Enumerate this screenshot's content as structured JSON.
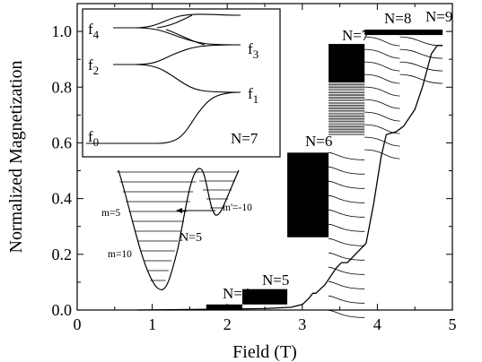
{
  "chart_data": {
    "type": "line",
    "xlabel": "Field (T)",
    "ylabel": "Normalized Magnetization",
    "xlim": [
      0,
      5
    ],
    "ylim": [
      0,
      1.1
    ],
    "x_ticks": [
      "0",
      "1",
      "2",
      "3",
      "4",
      "5"
    ],
    "y_ticks": [
      "0.0",
      "0.2",
      "0.4",
      "0.6",
      "0.8",
      "1.0"
    ],
    "step_levels": [
      {
        "label": "N=4",
        "x_start": 1.72,
        "x_end": 2.2,
        "y": 0.02
      },
      {
        "label": "N=5",
        "x_start": 2.2,
        "x_end": 2.8,
        "y": 0.075
      },
      {
        "label": "N=6",
        "x_start": 2.8,
        "x_end": 3.35,
        "y": 0.565
      },
      {
        "label": "N=7",
        "x_start": 3.35,
        "x_end": 3.83,
        "y": 0.955
      },
      {
        "label": "N=8",
        "x_start": 3.83,
        "x_end": 4.3,
        "y": 1.0
      },
      {
        "label": "N=9",
        "x_start": 4.3,
        "x_end": 4.87,
        "y": 1.0
      }
    ],
    "main_curve": {
      "x": [
        0.8,
        1.5,
        2.5,
        2.85,
        3.0,
        3.08,
        3.14,
        3.18,
        3.3,
        3.45,
        3.52,
        3.6,
        3.85,
        3.95,
        4.05,
        4.12,
        4.25,
        4.35,
        4.5,
        4.6,
        4.72,
        4.8,
        4.87
      ],
      "y": [
        0.0,
        0.002,
        0.005,
        0.01,
        0.02,
        0.04,
        0.06,
        0.06,
        0.09,
        0.15,
        0.17,
        0.17,
        0.24,
        0.38,
        0.55,
        0.63,
        0.64,
        0.66,
        0.72,
        0.8,
        0.92,
        0.95,
        0.95
      ]
    }
  },
  "main_labels": {
    "n4": "N=4",
    "n5": "N=5",
    "n6": "N=6",
    "n7": "N=7",
    "n8": "N=8",
    "n9": "N=9"
  },
  "inset": {
    "n_label": "N=7",
    "f0": "f0",
    "f1": "f1",
    "f2": "f2",
    "f3": "f3",
    "f4": "f4"
  },
  "well": {
    "m_left_top": "m=5",
    "m_left_bottom": "m=10",
    "m_right": "m'=-10",
    "n_label": "N=5"
  }
}
